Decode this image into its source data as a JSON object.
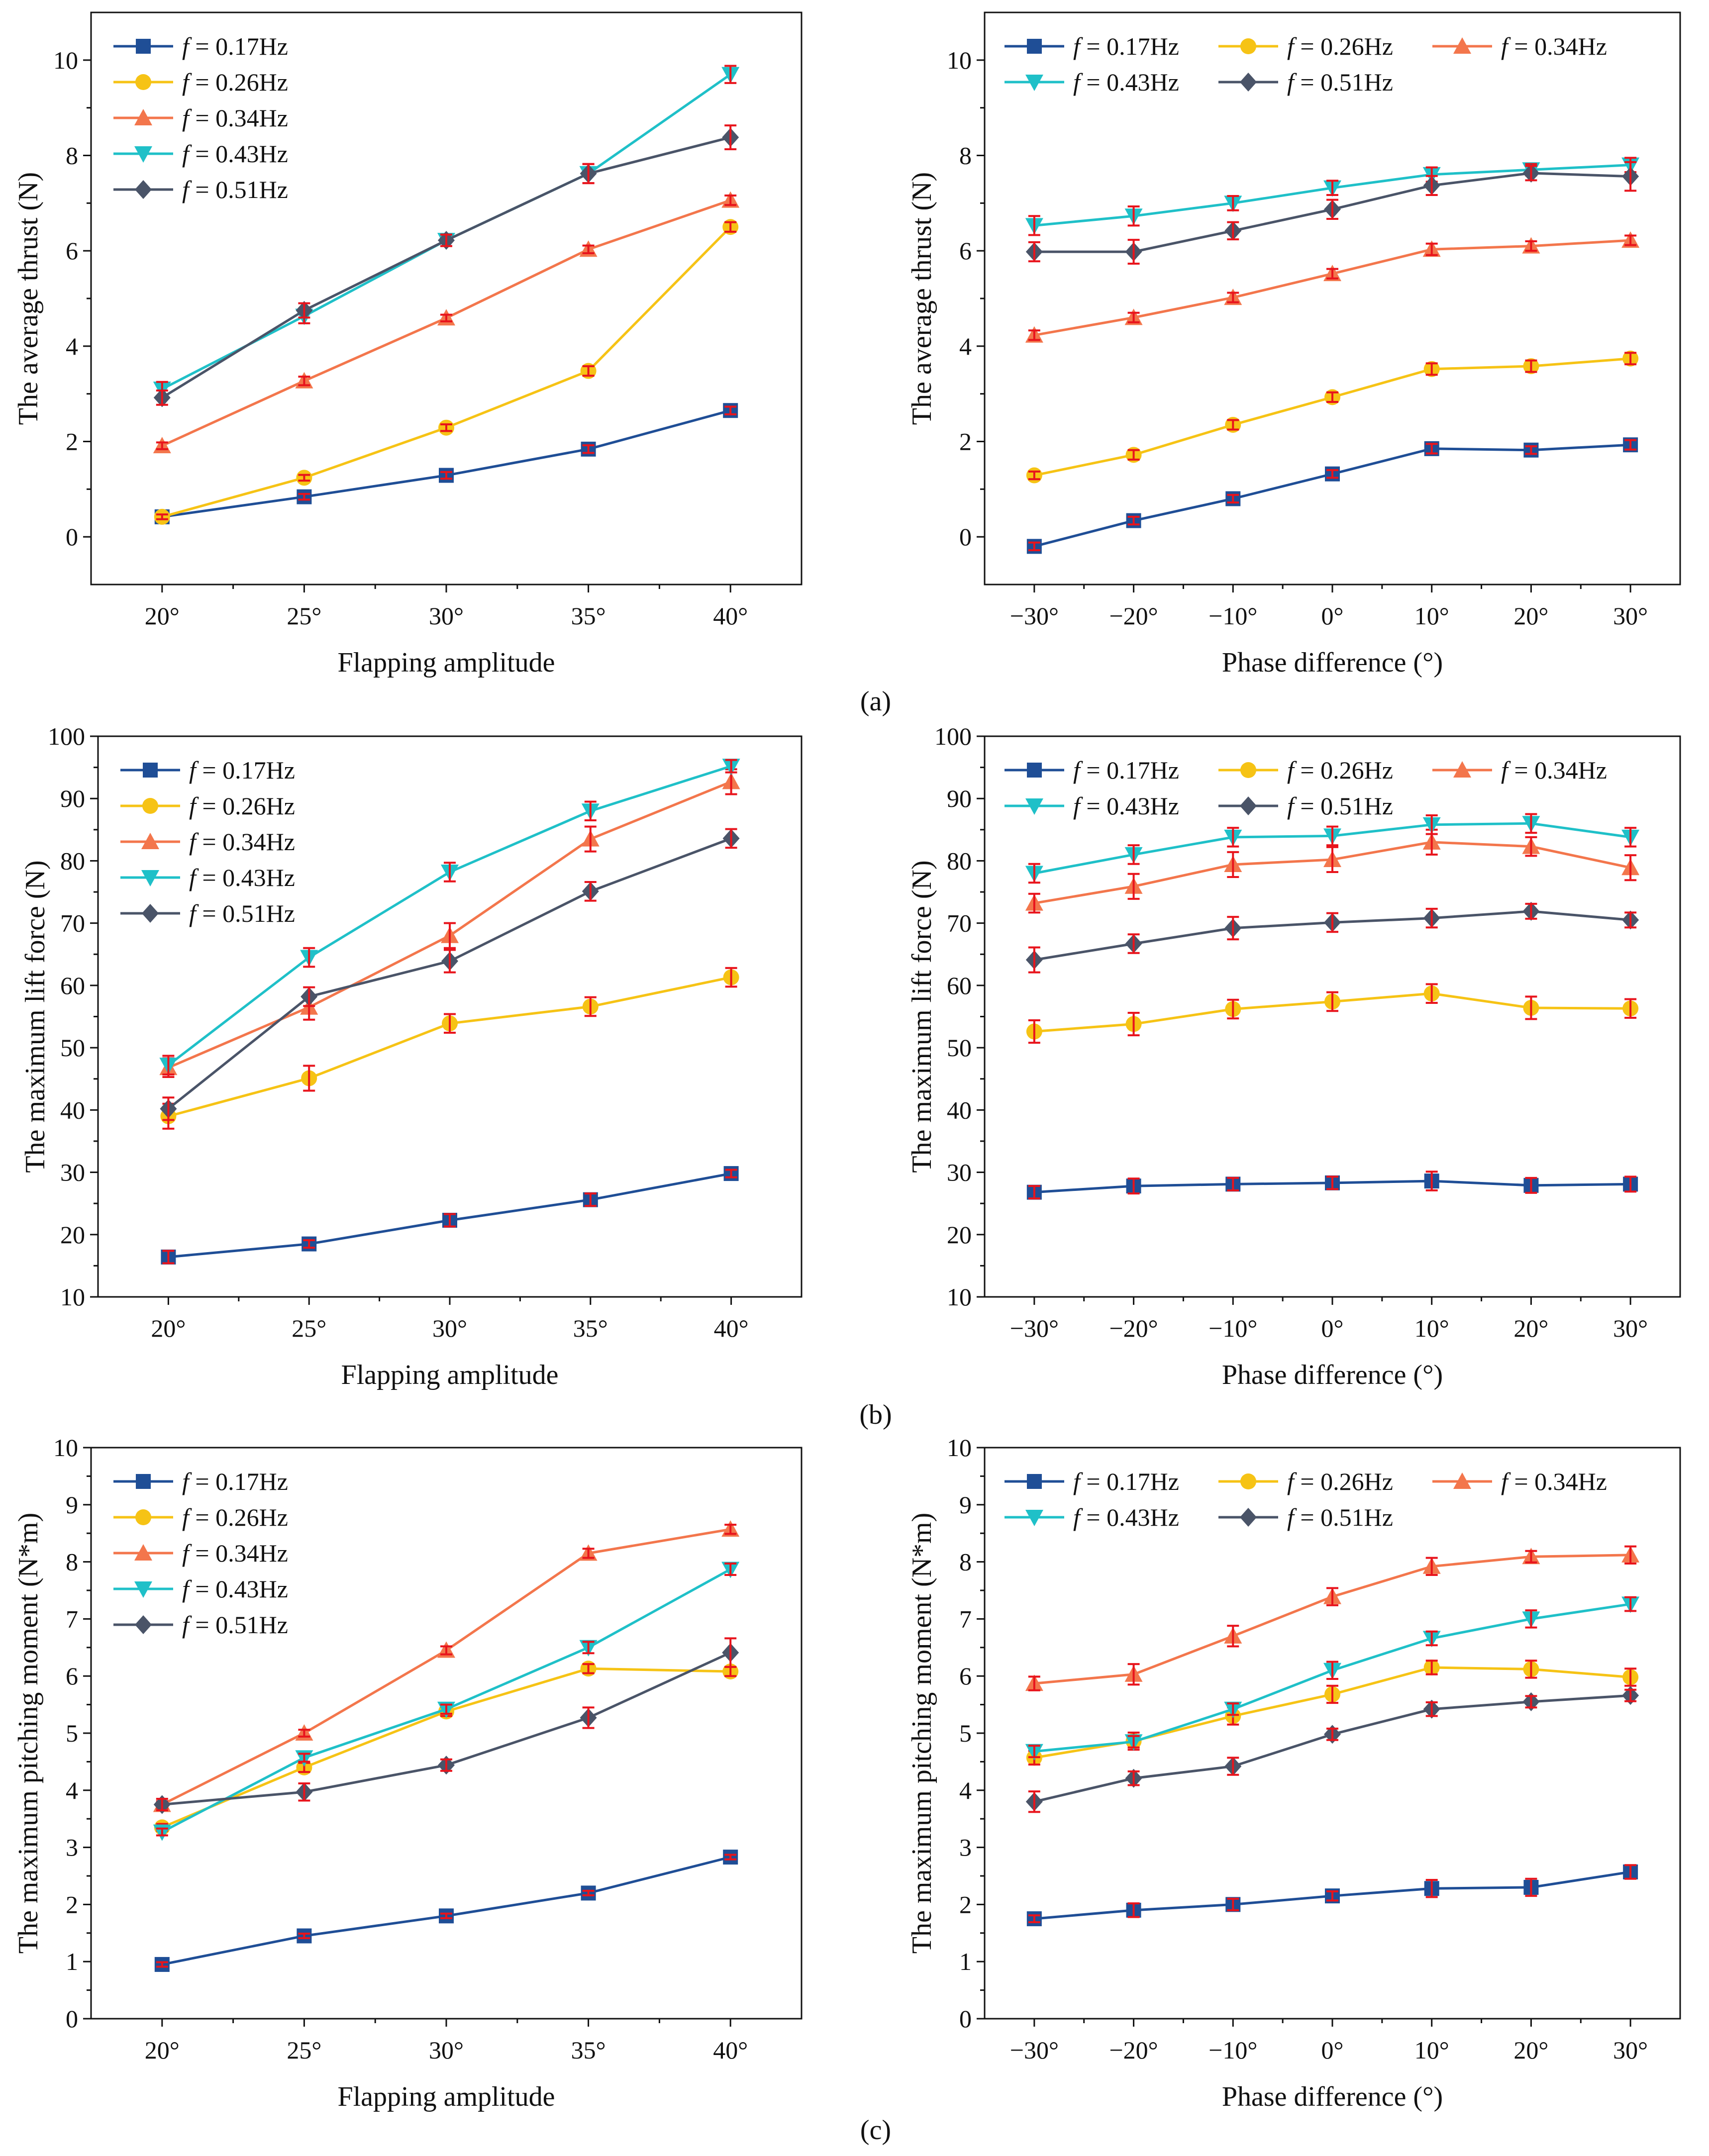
{
  "figure": {
    "panel_labels": [
      "(a)",
      "(b)",
      "(c)"
    ]
  },
  "legend_entries": [
    {
      "italic": "f",
      "rest": " = 0.17Hz"
    },
    {
      "italic": "f",
      "rest": " = 0.26Hz"
    },
    {
      "italic": "f",
      "rest": " = 0.34Hz"
    },
    {
      "italic": "f",
      "rest": " = 0.43Hz"
    },
    {
      "italic": "f",
      "rest": " = 0.51Hz"
    }
  ],
  "series_style": [
    {
      "color": "#1f4e96",
      "marker": "square"
    },
    {
      "color": "#f6c315",
      "marker": "circle"
    },
    {
      "color": "#f3764c",
      "marker": "triangle-up"
    },
    {
      "color": "#1fc0c8",
      "marker": "triangle-down"
    },
    {
      "color": "#4a5468",
      "marker": "diamond"
    }
  ],
  "error_bar_color": "#e8141c",
  "chart_data": [
    {
      "type": "line",
      "panel": "(a)",
      "position": "left",
      "xlabel": "Flapping amplitude",
      "ylabel": "The average thrust (N)",
      "categories": [
        "20°",
        "25°",
        "30°",
        "35°",
        "40°"
      ],
      "xlim": [
        -0.5,
        4.5
      ],
      "ylim": [
        -1,
        11
      ],
      "yticks": [
        0,
        2,
        4,
        6,
        8,
        10
      ],
      "legend_layout": "single-column",
      "series": [
        {
          "name": "f = 0.17Hz",
          "values": [
            0.42,
            0.84,
            1.29,
            1.84,
            2.65
          ],
          "errors": [
            0.05,
            0.06,
            0.07,
            0.08,
            0.08
          ]
        },
        {
          "name": "f = 0.26Hz",
          "values": [
            0.42,
            1.24,
            2.29,
            3.48,
            6.5
          ],
          "errors": [
            0.05,
            0.06,
            0.07,
            0.1,
            0.1
          ]
        },
        {
          "name": "f = 0.34Hz",
          "values": [
            1.91,
            3.27,
            4.59,
            6.03,
            7.06
          ],
          "errors": [
            0.07,
            0.09,
            0.07,
            0.08,
            0.1
          ]
        },
        {
          "name": "f = 0.43Hz",
          "values": [
            3.1,
            4.63,
            6.22,
            7.62,
            9.7
          ],
          "errors": [
            0.15,
            0.15,
            0.12,
            0.2,
            0.18
          ]
        },
        {
          "name": "f = 0.51Hz",
          "values": [
            2.92,
            4.75,
            6.22,
            7.62,
            8.38
          ],
          "errors": [
            0.15,
            0.15,
            0.12,
            0.2,
            0.25
          ]
        }
      ]
    },
    {
      "type": "line",
      "panel": "(a)",
      "position": "right",
      "xlabel": "Phase difference (°)",
      "ylabel": "The average thrust (N)",
      "categories": [
        "−30°",
        "−20°",
        "−10°",
        "0°",
        "10°",
        "20°",
        "30°"
      ],
      "xlim": [
        -0.5,
        6.5
      ],
      "ylim": [
        -1,
        11
      ],
      "yticks": [
        0,
        2,
        4,
        6,
        8,
        10
      ],
      "legend_layout": "three-column",
      "series": [
        {
          "name": "f = 0.17Hz",
          "values": [
            -0.2,
            0.34,
            0.8,
            1.32,
            1.85,
            1.82,
            1.93
          ],
          "errors": [
            0.08,
            0.08,
            0.08,
            0.08,
            0.1,
            0.08,
            0.1
          ]
        },
        {
          "name": "f = 0.26Hz",
          "values": [
            1.29,
            1.72,
            2.35,
            2.93,
            3.52,
            3.58,
            3.74
          ],
          "errors": [
            0.08,
            0.1,
            0.1,
            0.1,
            0.12,
            0.12,
            0.12
          ]
        },
        {
          "name": "f = 0.34Hz",
          "values": [
            4.23,
            4.6,
            5.02,
            5.52,
            6.03,
            6.1,
            6.22
          ],
          "errors": [
            0.1,
            0.1,
            0.1,
            0.1,
            0.12,
            0.1,
            0.1
          ]
        },
        {
          "name": "f = 0.43Hz",
          "values": [
            6.53,
            6.73,
            7.0,
            7.32,
            7.6,
            7.7,
            7.8
          ],
          "errors": [
            0.2,
            0.2,
            0.15,
            0.15,
            0.15,
            0.12,
            0.15
          ]
        },
        {
          "name": "f = 0.51Hz",
          "values": [
            5.98,
            5.98,
            6.42,
            6.87,
            7.37,
            7.63,
            7.56
          ],
          "errors": [
            0.2,
            0.25,
            0.18,
            0.2,
            0.2,
            0.15,
            0.3
          ]
        }
      ]
    },
    {
      "type": "line",
      "panel": "(b)",
      "position": "left",
      "xlabel": "Flapping amplitude",
      "ylabel": "The maximum lift force (N)",
      "categories": [
        "20°",
        "25°",
        "30°",
        "35°",
        "40°"
      ],
      "xlim": [
        -0.5,
        4.5
      ],
      "ylim": [
        10,
        100
      ],
      "yticks": [
        10,
        20,
        30,
        40,
        50,
        60,
        70,
        80,
        90,
        100
      ],
      "legend_layout": "single-column",
      "series": [
        {
          "name": "f = 0.17Hz",
          "values": [
            16.4,
            18.5,
            22.3,
            25.6,
            29.8
          ],
          "errors": [
            1.0,
            0.6,
            1.0,
            1.0,
            0.6
          ]
        },
        {
          "name": "f = 0.26Hz",
          "values": [
            39.0,
            45.1,
            53.9,
            56.6,
            61.3
          ],
          "errors": [
            2.0,
            2.0,
            1.5,
            1.5,
            1.5
          ]
        },
        {
          "name": "f = 0.34Hz",
          "values": [
            46.8,
            56.5,
            68.0,
            83.5,
            92.7
          ],
          "errors": [
            1.5,
            2.0,
            2.0,
            2.0,
            2.0
          ]
        },
        {
          "name": "f = 0.43Hz",
          "values": [
            47.2,
            64.5,
            78.2,
            88.0,
            95.2
          ],
          "errors": [
            1.5,
            1.5,
            1.5,
            1.5,
            1.0
          ]
        },
        {
          "name": "f = 0.51Hz",
          "values": [
            40.2,
            58.2,
            63.9,
            75.1,
            83.6
          ],
          "errors": [
            1.8,
            1.5,
            1.8,
            1.5,
            1.5
          ]
        }
      ]
    },
    {
      "type": "line",
      "panel": "(b)",
      "position": "right",
      "xlabel": "Phase difference (°)",
      "ylabel": "The maximum lift force (N)",
      "categories": [
        "−30°",
        "−20°",
        "−10°",
        "0°",
        "10°",
        "20°",
        "30°"
      ],
      "xlim": [
        -0.5,
        6.5
      ],
      "ylim": [
        10,
        100
      ],
      "yticks": [
        10,
        20,
        30,
        40,
        50,
        60,
        70,
        80,
        90,
        100
      ],
      "legend_layout": "three-column",
      "series": [
        {
          "name": "f = 0.17Hz",
          "values": [
            26.8,
            27.8,
            28.1,
            28.3,
            28.6,
            27.9,
            28.1
          ],
          "errors": [
            1.0,
            1.2,
            1.0,
            1.0,
            1.5,
            1.2,
            1.2
          ]
        },
        {
          "name": "f = 0.26Hz",
          "values": [
            52.6,
            53.8,
            56.2,
            57.4,
            58.7,
            56.4,
            56.3
          ],
          "errors": [
            1.8,
            1.8,
            1.5,
            1.5,
            1.5,
            1.8,
            1.5
          ]
        },
        {
          "name": "f = 0.34Hz",
          "values": [
            73.2,
            75.9,
            79.4,
            80.2,
            83.0,
            82.3,
            78.9
          ],
          "errors": [
            1.5,
            2.0,
            2.0,
            2.0,
            2.0,
            1.5,
            2.0
          ]
        },
        {
          "name": "f = 0.43Hz",
          "values": [
            78.0,
            81.0,
            83.8,
            84.0,
            85.8,
            86.0,
            83.8
          ],
          "errors": [
            1.5,
            1.5,
            1.5,
            1.5,
            1.5,
            1.5,
            1.5
          ]
        },
        {
          "name": "f = 0.51Hz",
          "values": [
            64.1,
            66.7,
            69.2,
            70.1,
            70.8,
            71.9,
            70.5
          ],
          "errors": [
            2.0,
            1.5,
            1.8,
            1.5,
            1.5,
            1.2,
            1.2
          ]
        }
      ]
    },
    {
      "type": "line",
      "panel": "(c)",
      "position": "left",
      "xlabel": "Flapping amplitude",
      "ylabel": "The maximum pitching moment (N*m)",
      "categories": [
        "20°",
        "25°",
        "30°",
        "35°",
        "40°"
      ],
      "xlim": [
        -0.5,
        4.5
      ],
      "ylim": [
        0,
        10
      ],
      "yticks": [
        0,
        1,
        2,
        3,
        4,
        5,
        6,
        7,
        8,
        9,
        10
      ],
      "legend_layout": "single-column",
      "series": [
        {
          "name": "f = 0.17Hz",
          "values": [
            0.95,
            1.45,
            1.8,
            2.2,
            2.83
          ],
          "errors": [
            0.04,
            0.04,
            0.04,
            0.04,
            0.04
          ]
        },
        {
          "name": "f = 0.26Hz",
          "values": [
            3.35,
            4.4,
            5.38,
            6.13,
            6.08
          ],
          "errors": [
            0.06,
            0.08,
            0.08,
            0.08,
            0.08
          ]
        },
        {
          "name": "f = 0.34Hz",
          "values": [
            3.75,
            5.0,
            6.45,
            8.15,
            8.57
          ],
          "errors": [
            0.06,
            0.06,
            0.07,
            0.08,
            0.08
          ]
        },
        {
          "name": "f = 0.43Hz",
          "values": [
            3.27,
            4.57,
            5.42,
            6.5,
            7.87
          ],
          "errors": [
            0.06,
            0.07,
            0.08,
            0.1,
            0.1
          ]
        },
        {
          "name": "f = 0.51Hz",
          "values": [
            3.75,
            3.97,
            4.44,
            5.27,
            6.41
          ],
          "errors": [
            0.1,
            0.15,
            0.1,
            0.18,
            0.25
          ]
        }
      ]
    },
    {
      "type": "line",
      "panel": "(c)",
      "position": "right",
      "xlabel": "Phase difference (°)",
      "ylabel": "The maximum pitching moment (N*m)",
      "categories": [
        "−30°",
        "−20°",
        "−10°",
        "0°",
        "10°",
        "20°",
        "30°"
      ],
      "xlim": [
        -0.5,
        6.5
      ],
      "ylim": [
        0,
        10
      ],
      "yticks": [
        0,
        1,
        2,
        3,
        4,
        5,
        6,
        7,
        8,
        9,
        10
      ],
      "legend_layout": "three-column",
      "series": [
        {
          "name": "f = 0.17Hz",
          "values": [
            1.75,
            1.9,
            2.0,
            2.15,
            2.28,
            2.3,
            2.57
          ],
          "errors": [
            0.06,
            0.12,
            0.1,
            0.08,
            0.15,
            0.15,
            0.12
          ]
        },
        {
          "name": "f = 0.26Hz",
          "values": [
            4.57,
            4.86,
            5.3,
            5.68,
            6.15,
            6.12,
            5.98
          ],
          "errors": [
            0.12,
            0.15,
            0.15,
            0.15,
            0.12,
            0.15,
            0.15
          ]
        },
        {
          "name": "f = 0.34Hz",
          "values": [
            5.87,
            6.03,
            6.7,
            7.39,
            7.92,
            8.09,
            8.12
          ],
          "errors": [
            0.12,
            0.18,
            0.18,
            0.15,
            0.15,
            0.1,
            0.15
          ]
        },
        {
          "name": "f = 0.43Hz",
          "values": [
            4.68,
            4.85,
            5.42,
            6.1,
            6.66,
            7.0,
            7.26
          ],
          "errors": [
            0.1,
            0.1,
            0.1,
            0.15,
            0.12,
            0.15,
            0.12
          ]
        },
        {
          "name": "f = 0.51Hz",
          "values": [
            3.8,
            4.21,
            4.42,
            4.98,
            5.42,
            5.55,
            5.66
          ],
          "errors": [
            0.18,
            0.12,
            0.15,
            0.1,
            0.12,
            0.1,
            0.1
          ]
        }
      ]
    }
  ]
}
